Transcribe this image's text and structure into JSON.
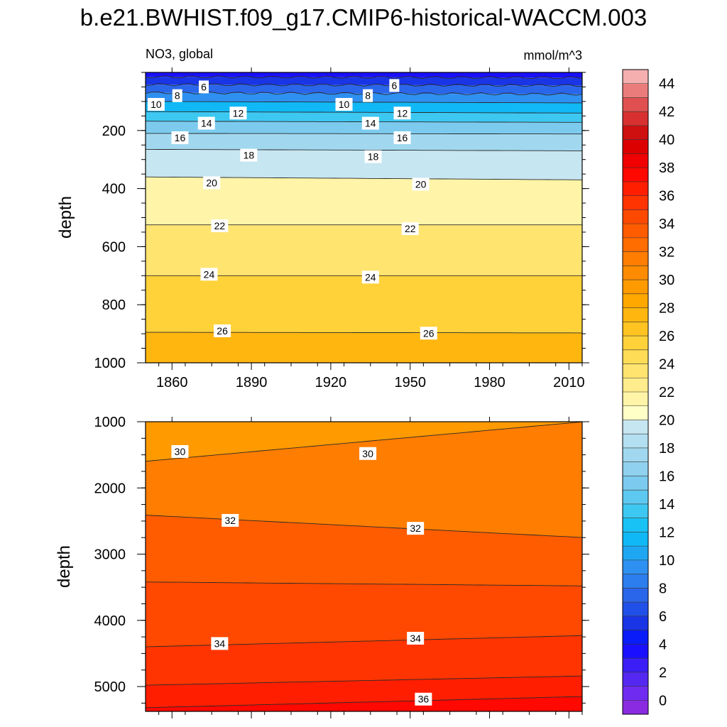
{
  "figure": {
    "title": "b.e21.BWHIST.f09_g17.CMIP6-historical-WACCM.003"
  },
  "chart_data": [
    {
      "type": "heatmap",
      "subtype": "filled-contour",
      "panel": "upper",
      "left_label": "NO3, global",
      "right_label": "mmol/m^3",
      "ylabel": "depth",
      "xlabel": "",
      "xlim": [
        1850,
        2015
      ],
      "ylim": [
        1000,
        0
      ],
      "y_reversed": true,
      "xticks": [
        "1860",
        "1890",
        "1920",
        "1950",
        "1980",
        "2010"
      ],
      "yticks": [
        "200",
        "400",
        "600",
        "800",
        "1000"
      ],
      "contour_lines": [
        {
          "level": 4,
          "depths": [
            15,
            18
          ]
        },
        {
          "level": 6,
          "depths": [
            42,
            45
          ]
        },
        {
          "level": 8,
          "depths": [
            70,
            75
          ]
        },
        {
          "level": 10,
          "depths": [
            100,
            105
          ]
        },
        {
          "level": 12,
          "depths": [
            135,
            140
          ]
        },
        {
          "level": 14,
          "depths": [
            168,
            172
          ]
        },
        {
          "level": 16,
          "depths": [
            210,
            212
          ]
        },
        {
          "level": 18,
          "depths": [
            265,
            270
          ]
        },
        {
          "level": 20,
          "depths": [
            360,
            370
          ]
        },
        {
          "level": 22,
          "depths": [
            525,
            525
          ]
        },
        {
          "level": 24,
          "depths": [
            700,
            700
          ]
        },
        {
          "level": 26,
          "depths": [
            895,
            897
          ]
        }
      ],
      "contour_labels": [
        {
          "text": "6",
          "x": 1872,
          "depth": 50
        },
        {
          "text": "6",
          "x": 1944,
          "depth": 45
        },
        {
          "text": "8",
          "x": 1862,
          "depth": 80
        },
        {
          "text": "8",
          "x": 1934,
          "depth": 80
        },
        {
          "text": "10",
          "x": 1854,
          "depth": 110
        },
        {
          "text": "10",
          "x": 1925,
          "depth": 110
        },
        {
          "text": "12",
          "x": 1885,
          "depth": 140
        },
        {
          "text": "12",
          "x": 1947,
          "depth": 140
        },
        {
          "text": "14",
          "x": 1873,
          "depth": 175
        },
        {
          "text": "14",
          "x": 1935,
          "depth": 175
        },
        {
          "text": "16",
          "x": 1863,
          "depth": 225
        },
        {
          "text": "16",
          "x": 1947,
          "depth": 225
        },
        {
          "text": "18",
          "x": 1889,
          "depth": 285
        },
        {
          "text": "18",
          "x": 1936,
          "depth": 290
        },
        {
          "text": "20",
          "x": 1875,
          "depth": 380
        },
        {
          "text": "20",
          "x": 1954,
          "depth": 385
        },
        {
          "text": "22",
          "x": 1878,
          "depth": 528
        },
        {
          "text": "22",
          "x": 1950,
          "depth": 538
        },
        {
          "text": "24",
          "x": 1874,
          "depth": 695
        },
        {
          "text": "24",
          "x": 1935,
          "depth": 705
        },
        {
          "text": "26",
          "x": 1879,
          "depth": 890
        },
        {
          "text": "26",
          "x": 1957,
          "depth": 898
        }
      ]
    },
    {
      "type": "heatmap",
      "subtype": "filled-contour",
      "panel": "lower",
      "ylabel": "depth",
      "xlabel": "",
      "xlim": [
        1850,
        2015
      ],
      "ylim": [
        5375,
        1000
      ],
      "y_reversed": true,
      "xticks": [],
      "yticks": [
        "1000",
        "2000",
        "3000",
        "4000",
        "5000"
      ],
      "contour_lines": [
        {
          "level": 30,
          "depths": [
            1600,
            1000
          ]
        },
        {
          "level": 32,
          "depths": [
            2410,
            2750
          ]
        },
        {
          "level": 33,
          "depths": [
            3420,
            3480
          ]
        },
        {
          "level": 34,
          "depths": [
            4400,
            4230
          ]
        },
        {
          "level": 35,
          "depths": [
            4980,
            4840
          ]
        },
        {
          "level": 36,
          "depths": [
            5320,
            5150
          ]
        }
      ],
      "contour_labels": [
        {
          "text": "30",
          "x": 1863,
          "depth": 1450
        },
        {
          "text": "30",
          "x": 1934,
          "depth": 1480
        },
        {
          "text": "32",
          "x": 1882,
          "depth": 2490
        },
        {
          "text": "32",
          "x": 1952,
          "depth": 2610
        },
        {
          "text": "34",
          "x": 1878,
          "depth": 4350
        },
        {
          "text": "34",
          "x": 1952,
          "depth": 4270
        },
        {
          "text": "36",
          "x": 1955,
          "depth": 5190
        }
      ]
    }
  ],
  "colorbar": {
    "labels": [
      "0",
      "2",
      "4",
      "6",
      "8",
      "10",
      "12",
      "14",
      "16",
      "18",
      "20",
      "22",
      "24",
      "26",
      "28",
      "30",
      "32",
      "34",
      "36",
      "38",
      "40",
      "42",
      "44"
    ],
    "colors": [
      "#8a2be2",
      "#6f2cf0",
      "#5428f0",
      "#3a1ef5",
      "#1a10ff",
      "#0a1cf8",
      "#1935e6",
      "#2150e8",
      "#2a66ea",
      "#2c7ded",
      "#2e90f0",
      "#1ea6f3",
      "#10b8f6",
      "#18c2f5",
      "#3dc8f2",
      "#5ec9f0",
      "#7ccbef",
      "#8fd1ee",
      "#a1d8ef",
      "#b3dff0",
      "#c6e6f1",
      "#ffffc8",
      "#fff4a8",
      "#ffec8c",
      "#ffe470",
      "#ffdc55",
      "#ffd23a",
      "#ffc421",
      "#ffb60f",
      "#ffa800",
      "#ff9a00",
      "#ff8c00",
      "#ff7d00",
      "#ff6c00",
      "#ff5c00",
      "#ff4800",
      "#ff3400",
      "#ff1e00",
      "#ff0800",
      "#f00000",
      "#dc0000",
      "#ce1010",
      "#d83030",
      "#e05050",
      "#ea7c7c",
      "#f5afaf"
    ]
  }
}
